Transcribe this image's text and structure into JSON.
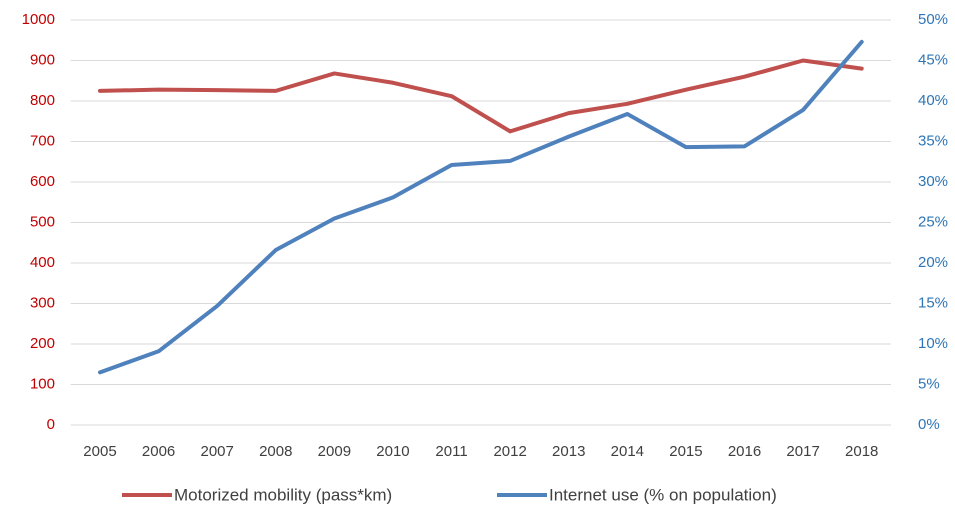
{
  "chart_data": {
    "type": "line",
    "categories": [
      "2005",
      "2006",
      "2007",
      "2008",
      "2009",
      "2010",
      "2011",
      "2012",
      "2013",
      "2014",
      "2015",
      "2016",
      "2017",
      "2018"
    ],
    "series": [
      {
        "name": "Motorized mobility (pass*km)",
        "color": "#c0504d",
        "values": [
          825,
          828,
          827,
          825,
          868,
          845,
          812,
          725,
          770,
          793,
          828,
          860,
          900,
          880
        ]
      },
      {
        "name": "Internet use (% on population)",
        "color": "#4f81bd",
        "axis": "y2",
        "values": [
          6.5,
          9.1,
          14.7,
          21.6,
          25.5,
          28.1,
          32.1,
          32.6,
          35.6,
          38.4,
          34.3,
          34.4,
          38.9,
          47.3
        ]
      }
    ],
    "ylim": [
      0,
      1000
    ],
    "yticks": [
      0,
      100,
      200,
      300,
      400,
      500,
      600,
      700,
      800,
      900,
      1000
    ],
    "y2lim": [
      0,
      50
    ],
    "y2ticks": [
      {
        "value": 0,
        "label": "0%"
      },
      {
        "value": 5,
        "label": "5%"
      },
      {
        "value": 10,
        "label": "10%"
      },
      {
        "value": 15,
        "label": "15%"
      },
      {
        "value": 20,
        "label": "20%"
      },
      {
        "value": 25,
        "label": "25%"
      },
      {
        "value": 30,
        "label": "30%"
      },
      {
        "value": 35,
        "label": "35%"
      },
      {
        "value": 40,
        "label": "40%"
      },
      {
        "value": 45,
        "label": "45%"
      },
      {
        "value": 50,
        "label": "50%"
      }
    ],
    "ytick_color": "#c00000",
    "y2tick_color": "#2e75b6",
    "grid": true,
    "legend": "bottom"
  }
}
